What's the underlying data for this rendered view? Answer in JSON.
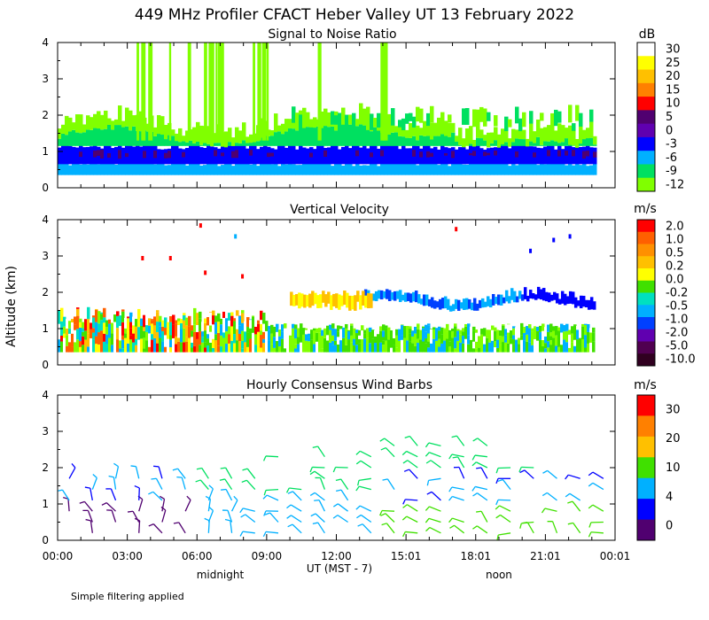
{
  "title": "449 MHz Profiler CFACT Heber Valley UT 13 February 2022",
  "ylabel": "Altitude (km)",
  "footnote": "Simple filtering applied",
  "xaxis": {
    "label": "UT  (MST - 7)",
    "ticks": [
      "00:00",
      "03:00",
      "06:00",
      "09:00",
      "12:00",
      "15:01",
      "18:01",
      "21:01",
      "00:01"
    ],
    "tick_hours": [
      0,
      3,
      6,
      9,
      12,
      15,
      18,
      21,
      24
    ],
    "local_labels": [
      {
        "text": "midnight",
        "hour": 7
      },
      {
        "text": "noon",
        "hour": 19
      }
    ],
    "range": [
      0,
      24
    ]
  },
  "chart_data": [
    {
      "type": "heatmap",
      "title": "Signal to Noise Ratio",
      "unit": "dB",
      "ylim": [
        0,
        4
      ],
      "yticks": [
        "0",
        "1",
        "2",
        "3",
        "4"
      ],
      "colorbar_labels": [
        "30",
        "25",
        "20",
        "15",
        "10",
        "5",
        "0",
        "-3",
        "-6",
        "-9",
        "-12"
      ],
      "colorbar_colors": [
        "#ffffff",
        "#ffff00",
        "#ffc000",
        "#ff8000",
        "#ff0000",
        "#500070",
        "#6000b0",
        "#0000ff",
        "#00b0ff",
        "#00e060",
        "#80ff00"
      ]
    },
    {
      "type": "heatmap",
      "title": "Vertical Velocity",
      "unit": "m/s",
      "ylim": [
        0,
        4
      ],
      "yticks": [
        "0",
        "1",
        "2",
        "3",
        "4"
      ],
      "colorbar_labels": [
        "2.0",
        "1.0",
        "0.5",
        "0.2",
        "0.0",
        "-0.2",
        "-0.5",
        "-1.0",
        "-2.0",
        "-5.0",
        "-10.0"
      ],
      "colorbar_colors": [
        "#ff0000",
        "#ff6000",
        "#ff9000",
        "#ffc000",
        "#ffff00",
        "#40e000",
        "#00e0c0",
        "#00b0ff",
        "#0040ff",
        "#6000b0",
        "#500050",
        "#300020"
      ]
    },
    {
      "type": "scatter",
      "title": "Hourly Consensus Wind Barbs",
      "unit": "m/s",
      "ylim": [
        0,
        4
      ],
      "yticks": [
        "0",
        "1",
        "2",
        "3",
        "4"
      ],
      "colorbar_labels": [
        "30",
        "20",
        "10",
        "4",
        "0"
      ],
      "colorbar_ticks": [
        30,
        20,
        10,
        4,
        0
      ],
      "colorbar_colors": [
        "#ff0000",
        "#ff8000",
        "#ffc000",
        "#40e000",
        "#00b0ff",
        "#0000ff",
        "#500070"
      ]
    }
  ],
  "colors": {
    "snr_strong": "#500070",
    "snr_mid": "#0000ff",
    "snr_cyan": "#00b0ff",
    "snr_green": "#00e060",
    "snr_weak": "#80ff00"
  }
}
